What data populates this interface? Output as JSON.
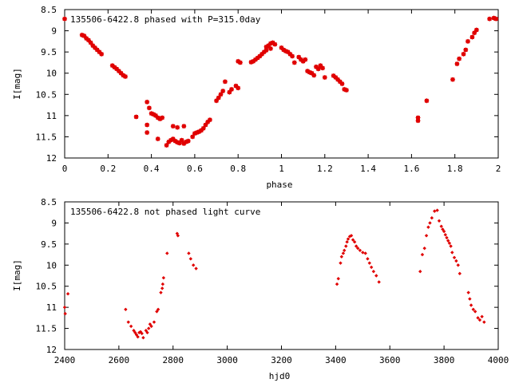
{
  "chart_data": [
    {
      "type": "scatter",
      "title": "135506-6422.8 phased with P=315.0day",
      "xlabel": "phase",
      "ylabel": "I[mag]",
      "xlim": [
        0,
        2
      ],
      "ylim": [
        12,
        8.5
      ],
      "y_inverted": true,
      "x_ticks": [
        0,
        0.2,
        0.4,
        0.6,
        0.8,
        1,
        1.2,
        1.4,
        1.6,
        1.8,
        2
      ],
      "x_tick_labels": [
        "0",
        "0.2",
        "0.4",
        "0.6",
        "0.8",
        "1",
        "1.2",
        "1.4",
        "1.6",
        "1.8",
        "2"
      ],
      "y_ticks": [
        8.5,
        9,
        9.5,
        10,
        10.5,
        11,
        11.5,
        12
      ],
      "y_tick_labels": [
        "8.5",
        "9",
        "9.5",
        "10",
        "10.5",
        "11",
        "11.5",
        "12"
      ],
      "marker_color": "#e00000",
      "grid": false,
      "x": [
        0.0,
        0.08,
        0.09,
        0.1,
        0.11,
        0.12,
        0.13,
        0.14,
        0.15,
        0.16,
        0.17,
        0.22,
        0.23,
        0.24,
        0.25,
        0.26,
        0.27,
        0.28,
        0.33,
        0.38,
        0.38,
        0.39,
        0.4,
        0.41,
        0.42,
        0.43,
        0.44,
        0.45,
        0.38,
        0.43,
        0.47,
        0.48,
        0.49,
        0.5,
        0.51,
        0.52,
        0.53,
        0.54,
        0.55,
        0.56,
        0.57,
        0.5,
        0.52,
        0.55,
        0.59,
        0.6,
        0.61,
        0.62,
        0.63,
        0.64,
        0.65,
        0.66,
        0.67,
        0.7,
        0.71,
        0.72,
        0.73,
        0.74,
        0.76,
        0.77,
        0.79,
        0.8,
        0.81,
        0.8,
        0.86,
        0.87,
        0.88,
        0.89,
        0.9,
        0.91,
        0.92,
        0.93,
        0.94,
        0.95,
        0.96,
        0.97,
        0.93,
        0.95,
        1.0,
        1.01,
        1.02,
        1.03,
        1.04,
        1.05,
        1.06,
        1.08,
        1.09,
        1.1,
        1.11,
        1.12,
        1.13,
        1.14,
        1.15,
        1.16,
        1.17,
        1.18,
        1.19,
        1.2,
        1.24,
        1.25,
        1.26,
        1.27,
        1.28,
        1.29,
        1.3,
        1.63,
        1.63,
        1.67,
        1.79,
        1.81,
        1.82,
        1.84,
        1.85,
        1.86,
        1.88,
        1.89,
        1.9,
        1.96,
        1.98,
        1.99
      ],
      "y": [
        8.72,
        9.1,
        9.12,
        9.18,
        9.22,
        9.28,
        9.35,
        9.4,
        9.45,
        9.5,
        9.55,
        9.82,
        9.86,
        9.9,
        9.95,
        10.0,
        10.05,
        10.08,
        11.03,
        10.68,
        11.22,
        10.82,
        10.95,
        10.97,
        11.0,
        11.05,
        11.08,
        11.05,
        11.4,
        11.55,
        11.7,
        11.62,
        11.58,
        11.55,
        11.6,
        11.63,
        11.65,
        11.58,
        11.66,
        11.62,
        11.6,
        11.25,
        11.28,
        11.25,
        11.5,
        11.42,
        11.4,
        11.38,
        11.35,
        11.3,
        11.22,
        11.15,
        11.1,
        10.65,
        10.58,
        10.5,
        10.42,
        10.2,
        10.45,
        10.38,
        10.3,
        10.35,
        9.75,
        9.72,
        9.74,
        9.72,
        9.68,
        9.64,
        9.6,
        9.55,
        9.5,
        9.46,
        9.35,
        9.3,
        9.28,
        9.32,
        9.38,
        9.42,
        9.4,
        9.45,
        9.48,
        9.5,
        9.55,
        9.6,
        9.75,
        9.62,
        9.68,
        9.72,
        9.68,
        9.95,
        9.98,
        10.0,
        10.05,
        9.85,
        9.9,
        9.82,
        9.88,
        10.1,
        10.06,
        10.1,
        10.15,
        10.2,
        10.25,
        10.38,
        10.4,
        11.05,
        11.12,
        10.65,
        10.15,
        9.78,
        9.66,
        9.55,
        9.45,
        9.25,
        9.15,
        9.05,
        8.98,
        8.72,
        8.7,
        8.72
      ]
    },
    {
      "type": "scatter",
      "title": "135506-6422.8 not phased light curve",
      "xlabel": "hjd0",
      "ylabel": "I[mag]",
      "xlim": [
        2400,
        4000
      ],
      "ylim": [
        12,
        8.5
      ],
      "y_inverted": true,
      "x_ticks": [
        2400,
        2600,
        2800,
        3000,
        3200,
        3400,
        3600,
        3800,
        4000
      ],
      "x_tick_labels": [
        "2400",
        "2600",
        "2800",
        "3000",
        "3200",
        "3400",
        "3600",
        "3800",
        "4000"
      ],
      "y_ticks": [
        8.5,
        9,
        9.5,
        10,
        10.5,
        11,
        11.5,
        12
      ],
      "y_tick_labels": [
        "8.5",
        "9",
        "9.5",
        "10",
        "10.5",
        "11",
        "11.5",
        "12"
      ],
      "marker_color": "#e00000",
      "grid": false,
      "x": [
        2400,
        2402,
        2412,
        2625,
        2635,
        2645,
        2655,
        2660,
        2665,
        2670,
        2675,
        2680,
        2685,
        2690,
        2700,
        2705,
        2710,
        2715,
        2720,
        2730,
        2740,
        2745,
        2755,
        2760,
        2762,
        2765,
        2778,
        2815,
        2818,
        2858,
        2865,
        2875,
        2885,
        3405,
        3410,
        3418,
        3422,
        3428,
        3432,
        3438,
        3442,
        3446,
        3452,
        3458,
        3464,
        3470,
        3476,
        3482,
        3490,
        3500,
        3510,
        3518,
        3525,
        3532,
        3540,
        3550,
        3560,
        3712,
        3720,
        3728,
        3735,
        3742,
        3748,
        3755,
        3765,
        3775,
        3782,
        3790,
        3795,
        3800,
        3805,
        3810,
        3815,
        3820,
        3825,
        3830,
        3838,
        3845,
        3852,
        3858,
        3890,
        3895,
        3900,
        3908,
        3915,
        3925,
        3932,
        3940,
        3948
      ],
      "y": [
        11.0,
        11.15,
        10.68,
        11.05,
        11.35,
        11.45,
        11.55,
        11.6,
        11.65,
        11.7,
        11.6,
        11.58,
        11.62,
        11.72,
        11.55,
        11.6,
        11.5,
        11.4,
        11.45,
        11.35,
        11.1,
        11.05,
        10.65,
        10.55,
        10.45,
        10.3,
        9.72,
        9.25,
        9.3,
        9.72,
        9.85,
        10.0,
        10.08,
        10.45,
        10.32,
        9.95,
        9.8,
        9.72,
        9.65,
        9.55,
        9.45,
        9.38,
        9.32,
        9.3,
        9.4,
        9.45,
        9.55,
        9.6,
        9.65,
        9.7,
        9.72,
        9.85,
        9.95,
        10.05,
        10.15,
        10.25,
        10.4,
        10.15,
        9.75,
        9.6,
        9.3,
        9.1,
        9.0,
        8.88,
        8.72,
        8.7,
        8.95,
        9.08,
        9.15,
        9.2,
        9.28,
        9.35,
        9.42,
        9.48,
        9.55,
        9.7,
        9.82,
        9.9,
        10.0,
        10.2,
        10.65,
        10.8,
        10.95,
        11.05,
        11.1,
        11.25,
        11.3,
        11.22,
        11.35
      ]
    }
  ]
}
